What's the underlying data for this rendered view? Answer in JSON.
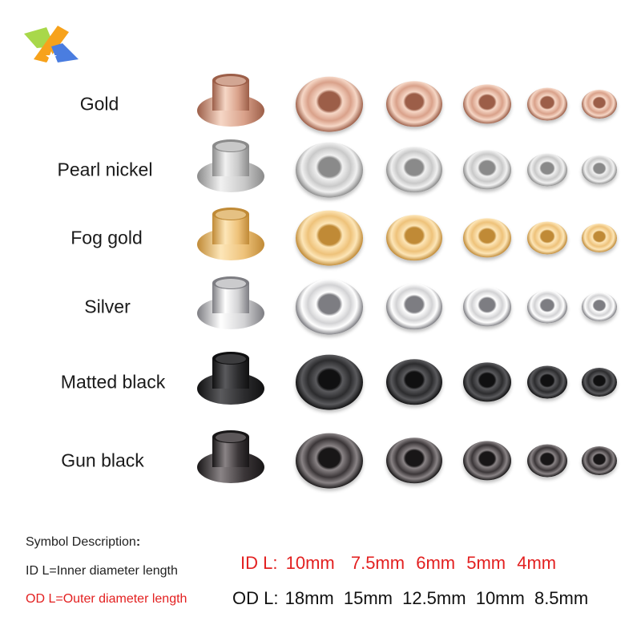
{
  "logo": {
    "name": "brand-logo",
    "colors": [
      "#a8d84a",
      "#f7a21b",
      "#4a7de0"
    ]
  },
  "finishes": [
    {
      "name": "Gold",
      "rim": "#d9a18a",
      "light": "#f6d7c6",
      "dark": "#9c5e48"
    },
    {
      "name": "Pearl nickel",
      "rim": "#c9c9c9",
      "light": "#f1f1f1",
      "dark": "#8a8a8a"
    },
    {
      "name": "Fog gold",
      "rim": "#eec27a",
      "light": "#fde6b8",
      "dark": "#c08a36"
    },
    {
      "name": "Silver",
      "rim": "#d2d2d4",
      "light": "#ffffff",
      "dark": "#7d7d82"
    },
    {
      "name": "Matted black",
      "rim": "#2c2c2e",
      "light": "#5a5a5d",
      "dark": "#101011"
    },
    {
      "name": "Gun black",
      "rim": "#3b3638",
      "light": "#8a8486",
      "dark": "#181617"
    }
  ],
  "legend": {
    "title": "Symbol Description",
    "title_colon": ":",
    "id_def": "ID L=Inner diameter length",
    "od_def": "OD L=Outer diameter length"
  },
  "sizes": {
    "id_label": "ID L:",
    "id_values": [
      "10mm",
      "7.5mm",
      "6mm",
      "5mm",
      "4mm"
    ],
    "od_label": "OD L:",
    "od_values": [
      "18mm",
      "15mm",
      "12.5mm",
      "10mm",
      "8.5mm"
    ]
  },
  "colors": {
    "red": "#e32020",
    "text": "#222222"
  }
}
